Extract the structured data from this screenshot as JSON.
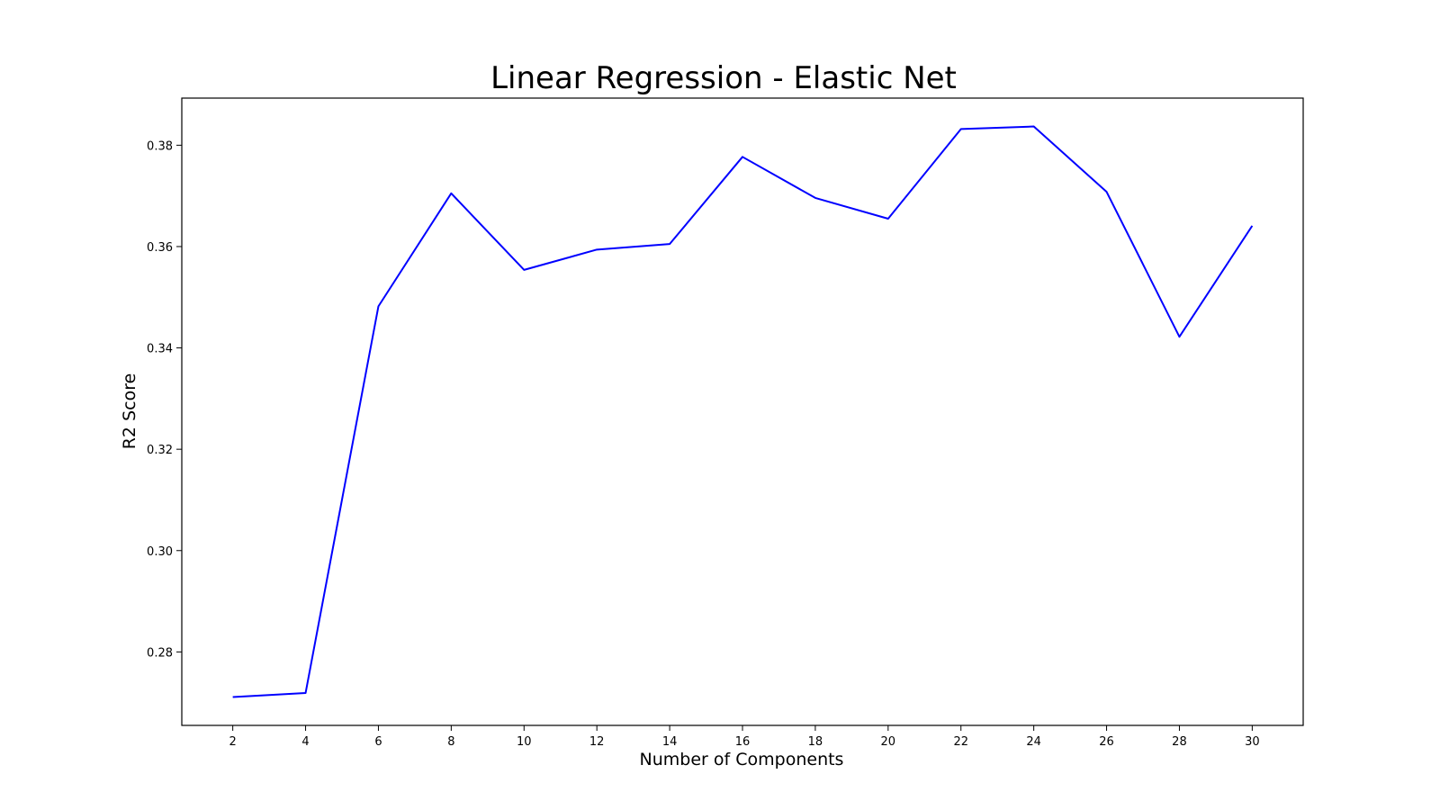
{
  "chart_data": {
    "type": "line",
    "title": "Linear Regression - Elastic Net",
    "xlabel": "Number of Components",
    "ylabel": "R2 Score",
    "x": [
      2,
      4,
      6,
      8,
      10,
      12,
      14,
      16,
      18,
      20,
      22,
      24,
      26,
      28,
      30
    ],
    "series": [
      {
        "values": [
          0.2711,
          0.2719,
          0.3482,
          0.3705,
          0.3554,
          0.3594,
          0.3605,
          0.3777,
          0.3696,
          0.3655,
          0.3832,
          0.3837,
          0.3708,
          0.3422,
          0.3641
        ],
        "color": "#0000ff"
      }
    ],
    "xticks": [
      "2",
      "4",
      "6",
      "8",
      "10",
      "12",
      "14",
      "16",
      "18",
      "20",
      "22",
      "24",
      "26",
      "28",
      "30"
    ],
    "yticks": [
      "0.28",
      "0.30",
      "0.32",
      "0.34",
      "0.36",
      "0.38"
    ],
    "ytick_values": [
      0.28,
      0.3,
      0.32,
      0.34,
      0.36,
      0.38
    ],
    "xlim": [
      0.6,
      31.4
    ],
    "ylim": [
      0.2655,
      0.3893
    ],
    "grid": false,
    "legend": "none"
  }
}
